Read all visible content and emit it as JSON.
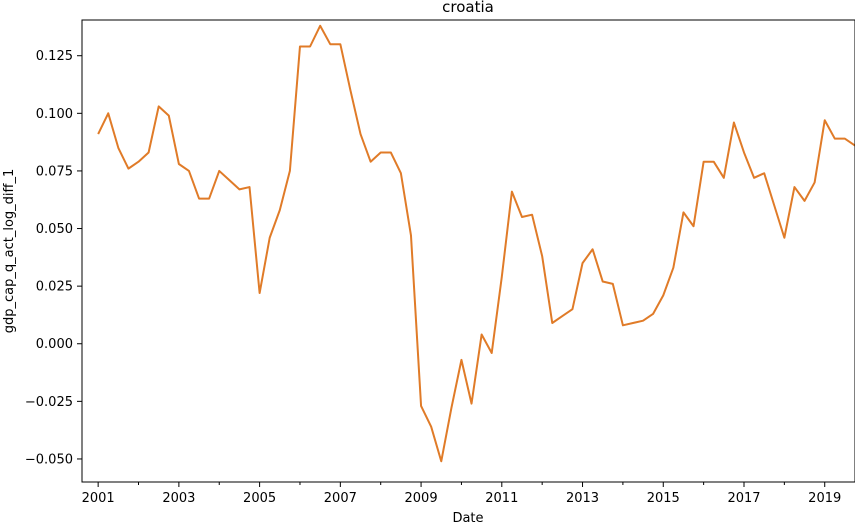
{
  "chart_data": {
    "type": "line",
    "title": "croatia",
    "xlabel": "Date",
    "ylabel": "gdp_cap_q_act_log_diff_1",
    "xlim": [
      2000.6,
      2019.75
    ],
    "ylim": [
      -0.06,
      0.1405
    ],
    "x_ticks": [
      2001,
      2003,
      2005,
      2007,
      2009,
      2011,
      2013,
      2015,
      2017,
      2019
    ],
    "x_tick_labels": [
      "2001",
      "2003",
      "2005",
      "2007",
      "2009",
      "2011",
      "2013",
      "2015",
      "2017",
      "2019"
    ],
    "y_ticks": [
      -0.05,
      -0.025,
      0.0,
      0.025,
      0.05,
      0.075,
      0.1,
      0.125
    ],
    "y_tick_labels": [
      "−0.050",
      "−0.025",
      "0.000",
      "0.025",
      "0.050",
      "0.075",
      "0.100",
      "0.125"
    ],
    "grid": false,
    "series": [
      {
        "color": "#e07b28",
        "x": [
          2001.0,
          2001.25,
          2001.5,
          2001.75,
          2002.0,
          2002.25,
          2002.5,
          2002.75,
          2003.0,
          2003.25,
          2003.5,
          2003.75,
          2004.0,
          2004.25,
          2004.5,
          2004.75,
          2005.0,
          2005.25,
          2005.5,
          2005.75,
          2006.0,
          2006.25,
          2006.5,
          2006.75,
          2007.0,
          2007.25,
          2007.5,
          2007.75,
          2008.0,
          2008.25,
          2008.5,
          2008.75,
          2009.0,
          2009.25,
          2009.5,
          2009.75,
          2010.0,
          2010.25,
          2010.5,
          2010.75,
          2011.0,
          2011.25,
          2011.5,
          2011.75,
          2012.0,
          2012.25,
          2012.5,
          2012.75,
          2013.0,
          2013.25,
          2013.5,
          2013.75,
          2014.0,
          2014.25,
          2014.5,
          2014.75,
          2015.0,
          2015.25,
          2015.5,
          2015.75,
          2016.0,
          2016.25,
          2016.5,
          2016.75,
          2017.0,
          2017.25,
          2017.5,
          2017.75,
          2018.0,
          2018.25,
          2018.5,
          2018.75,
          2019.0,
          2019.25,
          2019.5,
          2019.75
        ],
        "y": [
          0.091,
          0.1,
          0.085,
          0.076,
          0.079,
          0.083,
          0.103,
          0.099,
          0.078,
          0.075,
          0.063,
          0.063,
          0.075,
          0.071,
          0.067,
          0.068,
          0.022,
          0.046,
          0.058,
          0.075,
          0.129,
          0.129,
          0.138,
          0.13,
          0.13,
          0.11,
          0.091,
          0.079,
          0.083,
          0.083,
          0.074,
          0.047,
          -0.027,
          -0.036,
          -0.051,
          -0.028,
          -0.007,
          -0.026,
          0.004,
          -0.004,
          0.029,
          0.066,
          0.055,
          0.056,
          0.038,
          0.009,
          0.012,
          0.015,
          0.035,
          0.041,
          0.027,
          0.026,
          0.008,
          0.009,
          0.01,
          0.013,
          0.021,
          0.033,
          0.057,
          0.051,
          0.079,
          0.079,
          0.072,
          0.096,
          0.083,
          0.072,
          0.074,
          0.06,
          0.046,
          0.068,
          0.062,
          0.07,
          0.097,
          0.089,
          0.089,
          0.086
        ]
      }
    ]
  }
}
